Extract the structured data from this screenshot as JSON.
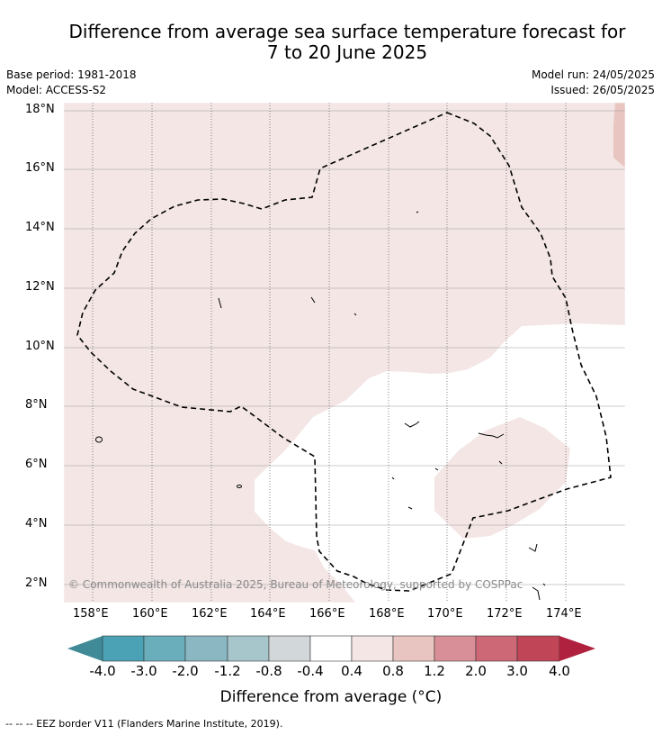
{
  "title_line1": "Difference from average sea surface temperature forecast for",
  "title_line2": "7 to 20 June 2025",
  "base_period": "Base period: 1981-2018",
  "model": "Model: ACCESS-S2",
  "model_run": "Model run: 24/05/2025",
  "issued": "Issued: 26/05/2025",
  "lat_labels": [
    "18°N",
    "16°N",
    "14°N",
    "12°N",
    "10°N",
    "8°N",
    "6°N",
    "4°N",
    "2°N"
  ],
  "lon_labels": [
    "158°E",
    "160°E",
    "162°E",
    "164°E",
    "166°E",
    "168°E",
    "170°E",
    "172°E",
    "174°E"
  ],
  "copyright": "© Commonwealth of Australia 2025, Bureau of Meteorology, supported by COSPPac",
  "colorbar": {
    "labels": [
      "-4.0",
      "-3.0",
      "-2.0",
      "-1.2",
      "-0.8",
      "-0.4",
      "0.4",
      "0.8",
      "1.2",
      "2.0",
      "3.0",
      "4.0"
    ],
    "colors": [
      "#3f8a96",
      "#4aa2b4",
      "#6aaebb",
      "#8ab7c2",
      "#a7c6cb",
      "#d2d8da",
      "#ffffff",
      "#f3e6e5",
      "#e8c5c1",
      "#d98f97",
      "#cd6877",
      "#c04556",
      "#b0213f"
    ],
    "title": "Difference from average (°C)"
  },
  "footnote": "-- -- -- EEZ border V11 (Flanders Marine Institute, 2019).",
  "map": {
    "warm_anomaly_color": "#f3e6e5",
    "neutral_color": "#ffffff",
    "eez_border_style": "dashed black"
  }
}
